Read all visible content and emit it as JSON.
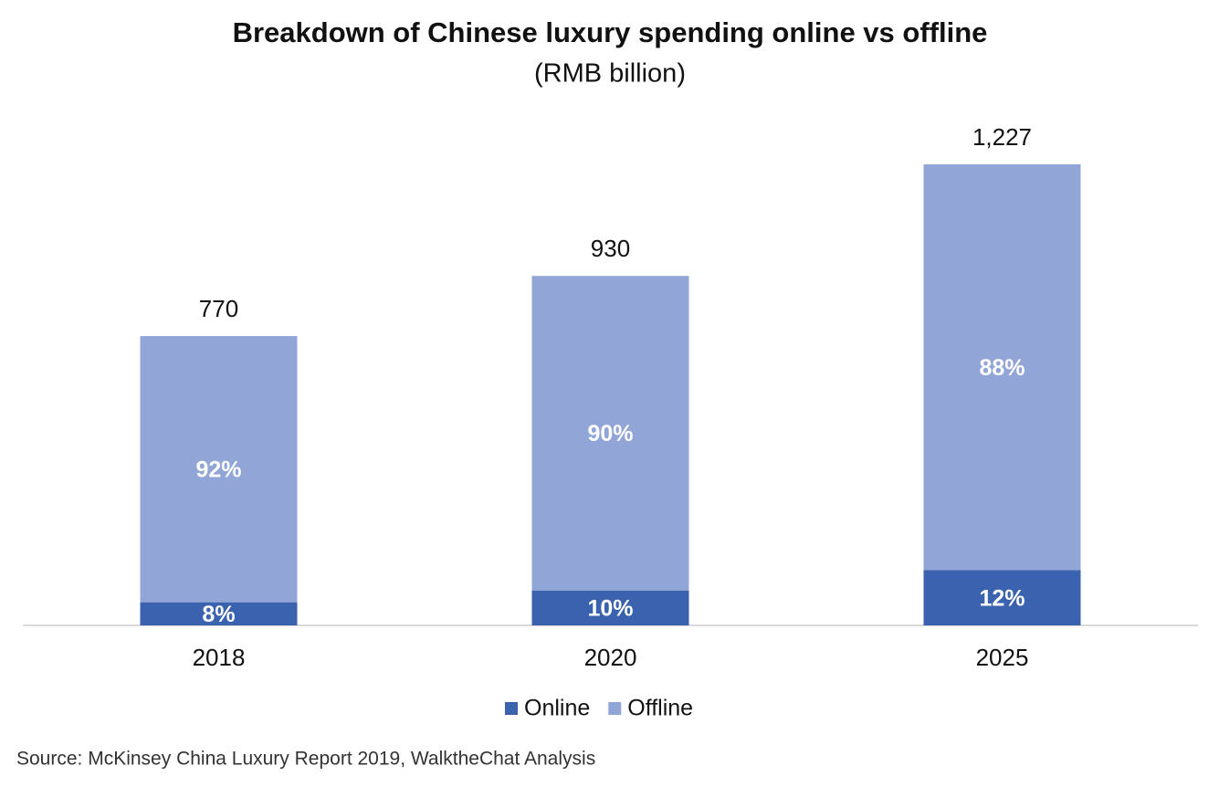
{
  "chart_data": {
    "type": "bar",
    "stacked": true,
    "title": "Breakdown of Chinese luxury spending online vs offline",
    "subtitle": "(RMB billion)",
    "categories": [
      "2018",
      "2020",
      "2025"
    ],
    "totals": {
      "values": [
        770,
        930,
        1227
      ],
      "value_labels": [
        "770",
        "930",
        "1,227"
      ]
    },
    "series": [
      {
        "name": "Online",
        "color": "#3a62ae",
        "values": [
          8,
          10,
          12
        ],
        "value_labels": [
          "8%",
          "10%",
          "12%"
        ]
      },
      {
        "name": "Offline",
        "color": "#91a5d6",
        "values": [
          92,
          90,
          88
        ],
        "value_labels": [
          "92%",
          "90%",
          "88%"
        ]
      }
    ],
    "source": "Source: McKinsey China Luxury Report 2019, WalktheChat Analysis"
  }
}
